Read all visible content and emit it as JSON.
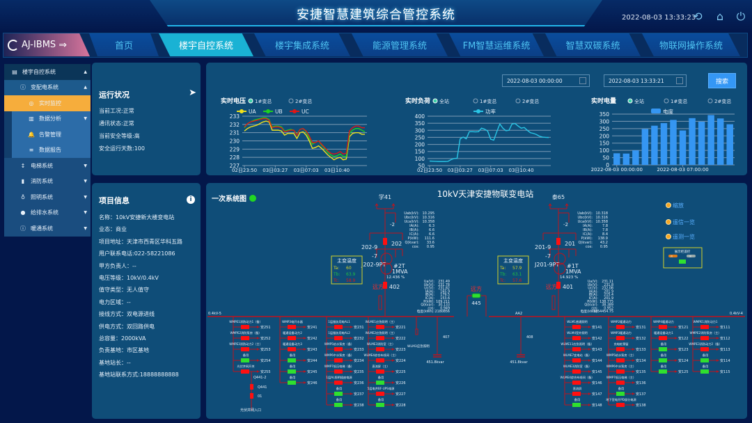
{
  "header": {
    "title": "安捷智慧建筑综合管控系统",
    "datetime": "2022-08-03 13:33:23",
    "icons": [
      "back-icon",
      "home-icon",
      "power-icon"
    ]
  },
  "logo": {
    "text": "AJ-IBMS"
  },
  "nav": {
    "tabs": [
      {
        "label": "首页"
      },
      {
        "label": "楼宇自控系统",
        "active": true
      },
      {
        "label": "楼宇集成系统"
      },
      {
        "label": "能源管理系统"
      },
      {
        "label": "FM智慧运维系统"
      },
      {
        "label": "智慧双碳系统"
      },
      {
        "label": "物联网操作系统"
      }
    ]
  },
  "sidebar": {
    "items": [
      {
        "label": "楼宇自控系统",
        "icon": "server-icon",
        "caret": "▲",
        "level": 0,
        "state": "group"
      },
      {
        "label": "变配电系统",
        "icon": "info-icon",
        "caret": "▲",
        "level": 1,
        "state": "open"
      },
      {
        "label": "实时监控",
        "icon": "target-icon",
        "caret": "",
        "level": 2,
        "state": "active"
      },
      {
        "label": "数据分析",
        "icon": "bar-chart-icon",
        "caret": "▼",
        "level": 2,
        "state": "sub"
      },
      {
        "label": "告警管理",
        "icon": "bell-icon",
        "caret": "",
        "level": 2,
        "state": "sub"
      },
      {
        "label": "数据报告",
        "icon": "database-icon",
        "caret": "",
        "level": 2,
        "state": "sub"
      },
      {
        "label": "电梯系统",
        "icon": "elevator-icon",
        "caret": "▼",
        "level": 1,
        "state": "closed"
      },
      {
        "label": "消防系统",
        "icon": "extinguisher-icon",
        "caret": "▼",
        "level": 1,
        "state": "closed"
      },
      {
        "label": "照明系统",
        "icon": "bulb-icon",
        "caret": "▼",
        "level": 1,
        "state": "closed"
      },
      {
        "label": "给排水系统",
        "icon": "water-drop-icon",
        "caret": "▼",
        "level": 1,
        "state": "closed"
      },
      {
        "label": "暖通系统",
        "icon": "info-icon",
        "caret": "▼",
        "level": 1,
        "state": "closed"
      }
    ]
  },
  "status": {
    "title": "运行状况",
    "lines": [
      "当前工况:正常",
      "通讯状态:正常",
      "当前安全等级:高",
      "安全运行天数:100"
    ]
  },
  "project": {
    "title": "项目信息",
    "lines": [
      "名称：10kV安捷新大楼变电站",
      "业态：商业",
      "项目地址：天津市西青区华科五路",
      "用户联系电话:022-58221086",
      "甲方负责人：--",
      "电压等级：10kV/0.4kV",
      "值守类型：无人值守",
      "电力区域：--",
      "接线方式：双电源进线",
      "供电方式：双回路供电",
      "总容量：2000kVA",
      "负责基地：市区基地",
      "基地站长：--",
      "基地站联系方式:18888888888"
    ]
  },
  "filters": {
    "start": "2022-08-03 00:00:00",
    "end": "2022-08-03 13:33:21",
    "search_label": "搜索"
  },
  "chart_data": [
    {
      "type": "line",
      "title": "实时电压",
      "radios": [
        {
          "label": "1#变总",
          "checked": true
        },
        {
          "label": "2#变总",
          "checked": false
        }
      ],
      "ylim": [
        227,
        233
      ],
      "yticks": [
        227,
        228,
        229,
        230,
        231,
        232,
        233
      ],
      "legend_position": "top",
      "grid": true,
      "tick_labels": [
        {
          "index": 0,
          "label": "02日23:50"
        },
        {
          "index": 10,
          "label": "03日03:27"
        },
        {
          "index": 20,
          "label": "03日07:03"
        },
        {
          "index": 30,
          "label": "03日10:40"
        }
      ],
      "series": [
        {
          "name": "UA",
          "color": "#f2e21b",
          "values": [
            231.2,
            231.5,
            231.7,
            231.8,
            231.9,
            232.1,
            232.3,
            232.4,
            232.3,
            231.3,
            231.3,
            231.3,
            231.2,
            230.7,
            230.9,
            230.9,
            230.9,
            230.3,
            231.0,
            231.1,
            230.7,
            230.0,
            229.1,
            229.2,
            229.4,
            229.1,
            228.7,
            228.3,
            228.0,
            227.7,
            227.9,
            228.0,
            227.7,
            227.8,
            230.5,
            230.9,
            231.0,
            231.0,
            230.8,
            230.8
          ]
        },
        {
          "name": "UB",
          "color": "#1ed21e",
          "values": [
            231.6,
            232.1,
            232.3,
            232.5,
            232.6,
            232.7,
            232.8,
            232.8,
            232.6,
            231.7,
            231.8,
            231.8,
            231.7,
            231.2,
            231.3,
            231.4,
            231.3,
            230.8,
            231.4,
            231.5,
            231.1,
            230.3,
            229.6,
            229.8,
            230.0,
            229.5,
            229.1,
            228.6,
            228.3,
            228.1,
            228.2,
            228.4,
            228.1,
            228.1,
            230.9,
            231.3,
            231.5,
            231.5,
            231.3,
            231.1
          ]
        },
        {
          "name": "UC",
          "color": "#e01616",
          "values": [
            231.7,
            232.1,
            232.3,
            232.4,
            232.5,
            232.6,
            232.7,
            232.7,
            232.5,
            231.6,
            231.7,
            231.7,
            231.6,
            231.1,
            231.2,
            231.3,
            231.3,
            230.7,
            231.4,
            231.5,
            231.2,
            230.6,
            229.8,
            229.8,
            230.0,
            229.6,
            229.2,
            228.8,
            228.5,
            228.4,
            228.5,
            228.7,
            228.4,
            228.5,
            231.2,
            231.6,
            231.8,
            231.8,
            231.6,
            231.6
          ]
        }
      ]
    },
    {
      "type": "line",
      "title": "实时负荷",
      "radios": [
        {
          "label": "全站",
          "checked": true
        },
        {
          "label": "1#变总",
          "checked": false
        },
        {
          "label": "2#变总",
          "checked": false
        }
      ],
      "ylim": [
        50,
        400
      ],
      "yticks": [
        50,
        100,
        150,
        200,
        250,
        300,
        350,
        400
      ],
      "legend_position": "top",
      "grid": true,
      "tick_labels": [
        {
          "index": 0,
          "label": "02日23:50"
        },
        {
          "index": 10,
          "label": "03日03:27"
        },
        {
          "index": 20,
          "label": "03日07:03"
        },
        {
          "index": 30,
          "label": "03日10:40"
        }
      ],
      "series": [
        {
          "name": "功率",
          "color": "#2ac6e6",
          "values": [
            82,
            81,
            80,
            79,
            79,
            79,
            80,
            92,
            100,
            102,
            240,
            252,
            240,
            290,
            290,
            289,
            290,
            315,
            308,
            295,
            237,
            230,
            290,
            345,
            315,
            297,
            300,
            345,
            348,
            330,
            315,
            320,
            300,
            283,
            278,
            270,
            258,
            252,
            250,
            249
          ]
        }
      ]
    },
    {
      "type": "bar",
      "title": "实时电量",
      "radios": [
        {
          "label": "全站",
          "checked": true
        },
        {
          "label": "1#变总",
          "checked": false
        },
        {
          "label": "2#变总",
          "checked": false
        }
      ],
      "ylim": [
        0,
        350
      ],
      "yticks": [
        0,
        50,
        100,
        150,
        200,
        250,
        300,
        350
      ],
      "legend_position": "top",
      "grid": true,
      "tick_labels": [
        {
          "index": 0,
          "label": "2022-08-03 00:00:00"
        },
        {
          "index": 7,
          "label": "2022-08-03 07:00:00"
        }
      ],
      "series": [
        {
          "name": "电度",
          "color": "#3596f2",
          "values": [
            80,
            78,
            100,
            248,
            270,
            288,
            310,
            237,
            322,
            298,
            343,
            320,
            280
          ]
        }
      ]
    }
  ],
  "diagram": {
    "title": "一次系统图",
    "station": "10kV天津安捷物联变电站",
    "status_color": "#22d622",
    "left": {
      "feeder": "学41",
      "meter_top": [
        [
          "Uab(kV):",
          "10.295"
        ],
        [
          "Ubc(kV):",
          "10.316"
        ],
        [
          "Uca(kV):",
          "10.358"
        ],
        [
          "IA(A):",
          "6.3"
        ],
        [
          "IB(A):",
          "6.6"
        ],
        [
          "IC(A):",
          "6.6"
        ],
        [
          "P(kW):",
          "111.6"
        ],
        [
          "Q(kvar):",
          "33.6"
        ],
        [
          "cos:",
          "0.95"
        ]
      ],
      "sw_top": "-2",
      "breaker_hv": "202",
      "earth": "202-9",
      "sw7": "-7",
      "pt": "J202-9PT",
      "tr": "#2T",
      "cap": "1MVA",
      "load": "12.436 %",
      "temp_title": "主变温度",
      "ta": "60",
      "tb": "63.9",
      "tc": "58.9",
      "remote": "远方",
      "breaker_lv": "402",
      "meter_bot": [
        [
          "Ua(V):",
          "231.49"
        ],
        [
          "Ub(V):",
          "231.78"
        ],
        [
          "Uc(V):",
          "231.82"
        ],
        [
          "IA(A):",
          "165.9"
        ],
        [
          "IB(A):",
          "179.5"
        ],
        [
          "IC(A):",
          "153.6"
        ],
        [
          "P(kW):",
          "109.211"
        ],
        [
          "Q(kvar):",
          "30.133"
        ],
        [
          "cos:",
          "0.949"
        ],
        [
          "电度(kWh):",
          "2180856"
        ]
      ]
    },
    "right": {
      "feeder": "泰65",
      "meter_top": [
        [
          "Uab(kV):",
          "10.318"
        ],
        [
          "Ubc(kV):",
          "10.316"
        ],
        [
          "Uca(kV):",
          "10.358"
        ],
        [
          "IA(A):",
          "7.8"
        ],
        [
          "IB(A):",
          "7.8"
        ],
        [
          "IC(A):",
          "8.4"
        ],
        [
          "P(kW):",
          "138.9"
        ],
        [
          "Q(kvar):",
          "43.2"
        ],
        [
          "cos:",
          "0.95"
        ]
      ],
      "sw_top": "-2",
      "breaker_hv": "201",
      "earth": "201-9",
      "sw7": "-7",
      "pt": "J201-9PT",
      "tr": "#1T",
      "cap": "1MVA",
      "load": "14.923 %",
      "temp_title": "主变温度",
      "ta": "57.9",
      "tb": "63.1",
      "tc": "57.6",
      "remote": "远方",
      "breaker_lv": "401",
      "meter_bot": [
        [
          "Ua(V):",
          "231.11"
        ],
        [
          "Ub(V):",
          "231.8"
        ],
        [
          "Uc(V):",
          "232.08"
        ],
        [
          "IA(A):",
          "201.9"
        ],
        [
          "IB(A):",
          "215.4"
        ],
        [
          "IC(A):",
          "201.9"
        ],
        [
          "P(kW):",
          "138.775"
        ],
        [
          "Q(kvar):",
          "38.389"
        ],
        [
          "cos:",
          "0.952"
        ],
        [
          "电度(kWh):",
          "1854454.75"
        ]
      ]
    },
    "tie": {
      "remote": "远方",
      "label": "445"
    },
    "bus_left": "0.4kV-5",
    "bus_mid": "AA2",
    "bus_right": "0.4kV-4",
    "left_extra": {
      "sw1": "Q441-2",
      "sw2": "Q441",
      "sw3": "01",
      "inlet": "光伏并网入口"
    },
    "cap_left": {
      "switch": "407",
      "label": "WLM3应急照明",
      "kvar": "451.8kvar"
    },
    "cap_right": {
      "switch": "408",
      "kvar": "451.8kvar"
    },
    "columns": [
      [
        [
          "WMPE1消防动力1（备）",
          "安251",
          "on"
        ],
        [
          "WMPE2消防泵房（备）",
          "安252",
          "on"
        ],
        [
          "WMPE3消防动力2（主）",
          "安253",
          "on"
        ],
        [
          "备用",
          "安254",
          "off"
        ],
        [
          "光伏并网开关",
          "安255",
          "on"
        ]
      ],
      [
        [
          "WMP3电开水器",
          "安241",
          "on"
        ],
        [
          "暖通设备动力2",
          "安242",
          "on"
        ],
        [
          "暖通设备动力3",
          "安243",
          "on"
        ],
        [
          "备用",
          "安244",
          "off"
        ],
        [
          "备用",
          "安245",
          "off"
        ],
        [
          "备用",
          "安246",
          "off"
        ]
      ],
      [
        [
          "1层服务用电AL1",
          "安231",
          "on"
        ],
        [
          "1层服务用电AL2",
          "安232",
          "on"
        ],
        [
          "WMP5给水泵房（备）",
          "安233",
          "on"
        ],
        [
          "WMP6中水泵房（备）",
          "安234",
          "on"
        ],
        [
          "WMP7低压电梯（备）",
          "安235",
          "on"
        ],
        [
          "1层AL照明插座电源",
          "安236",
          "on"
        ],
        [
          "备用",
          "安237",
          "off"
        ],
        [
          "备用",
          "安238",
          "off"
        ]
      ],
      [
        [
          "WLME1应急照明（主）",
          "安221",
          "on"
        ],
        [
          "WLME2应急照明（主）",
          "安222",
          "on"
        ],
        [
          "WLME3消防室（主）",
          "安223",
          "on"
        ],
        [
          "WLME4综合布线间（主）",
          "安224",
          "on"
        ],
        [
          "直流屏（主）",
          "安225",
          "on"
        ],
        [
          "备用",
          "安226",
          "off"
        ],
        [
          "5层电井BF-UPS电源",
          "安227",
          "on"
        ],
        [
          "备用",
          "安228",
          "off"
        ]
      ],
      [
        [
          "WLM1普通照明",
          "安141",
          "on"
        ],
        [
          "WLM4室外照明",
          "安142",
          "on"
        ],
        [
          "WLME11应急照明（备）",
          "安143",
          "on"
        ],
        [
          "WLME7变电站（备）",
          "安144",
          "on"
        ],
        [
          "WLME3消防室（备）",
          "安145",
          "on"
        ],
        [
          "WLME4综合布线间（备）",
          "安146",
          "on"
        ],
        [
          "直流屏",
          "安147",
          "on"
        ],
        [
          "备用",
          "安148",
          "off"
        ]
      ],
      [
        [
          "WMP2暖通动力",
          "安131",
          "on"
        ],
        [
          "WMP3暖通动力",
          "安132",
          "on"
        ],
        [
          "充电桩预留",
          "安133",
          "on"
        ],
        [
          "WMP5给水泵房（主）",
          "安134",
          "on"
        ],
        [
          "WMP6中水泵房（主）",
          "安135",
          "on"
        ],
        [
          "WMP7低压电梯（主）",
          "安136",
          "on"
        ],
        [
          "备用",
          "安137",
          "off"
        ],
        [
          "地下室电开PD部分电源",
          "安138",
          "on"
        ]
      ],
      [
        [
          "WMP4暖通动力",
          "安121",
          "on"
        ],
        [
          "暖通设备动力1",
          "安122",
          "on"
        ],
        [
          "备用",
          "安123",
          "off"
        ],
        [
          "备用",
          "安124",
          "off"
        ],
        [
          "备用",
          "安125",
          "off"
        ]
      ],
      [
        [
          "WMPE1消防动力1",
          "安111",
          "on"
        ],
        [
          "WMPE2消防泵房（主）",
          "安112",
          "on"
        ],
        [
          "WMPE3消防动力2（备）",
          "安113",
          "on"
        ],
        [
          "备用",
          "安114",
          "off"
        ],
        [
          "备用",
          "安115",
          "off"
        ]
      ]
    ],
    "links": [
      "缩放",
      "遥信一览",
      "遥测一览"
    ],
    "control_box": {
      "title": "展示柜遥控",
      "on_label": "开",
      "off_label": "关"
    },
    "colors": {
      "line": "#c0131c",
      "on": "#ff1010",
      "off": "#2fe02f",
      "temp_box": "#d6d32a"
    }
  }
}
